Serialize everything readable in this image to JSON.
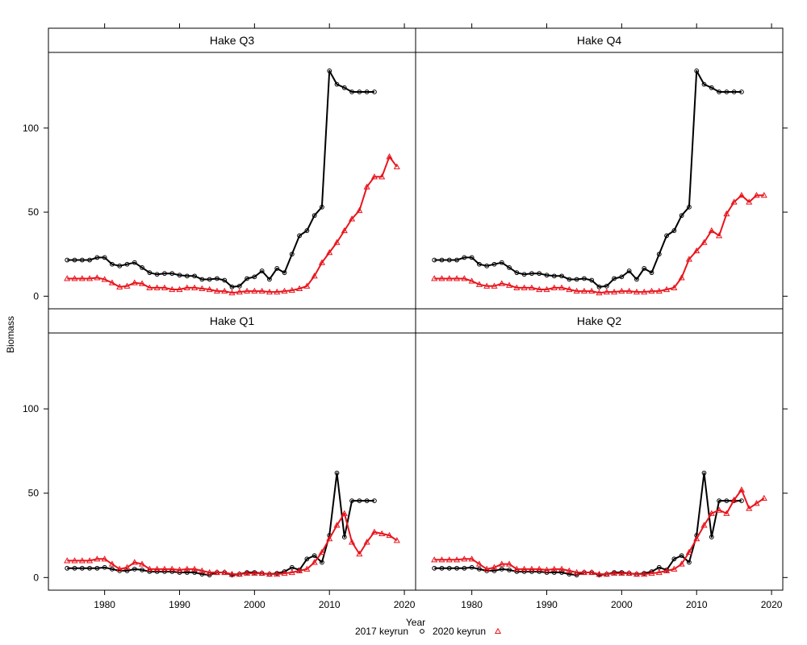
{
  "chart_data": {
    "type": "line",
    "xlabel": "Year",
    "ylabel": "Biomass",
    "xlim": [
      1972.5,
      2021.5
    ],
    "ylim": [
      -7.5,
      145
    ],
    "x_ticks": [
      1980,
      1990,
      2000,
      2010,
      2020
    ],
    "y_ticks": [
      0,
      50,
      100
    ],
    "legend_position": "bottom",
    "legend": [
      {
        "label": "2017 keyrun",
        "color": "#000000",
        "marker": "circle"
      },
      {
        "label": "2020 keyrun",
        "color": "#e8141c",
        "marker": "triangle"
      }
    ],
    "panels": [
      {
        "title": "Hake Q3",
        "series": [
          {
            "name": "2017 keyrun",
            "color": "#000000",
            "x": [
              1975,
              1976,
              1977,
              1978,
              1979,
              1980,
              1981,
              1982,
              1983,
              1984,
              1985,
              1986,
              1987,
              1988,
              1989,
              1990,
              1991,
              1992,
              1993,
              1994,
              1995,
              1996,
              1997,
              1998,
              1999,
              2000,
              2001,
              2002,
              2003,
              2004,
              2005,
              2006,
              2007,
              2008,
              2009,
              2010,
              2011,
              2012,
              2013,
              2014,
              2015,
              2016
            ],
            "y": [
              21.5,
              21.5,
              21.5,
              21.5,
              23,
              23,
              19,
              18,
              19,
              20,
              17,
              14,
              13,
              13.5,
              13.5,
              12.5,
              12,
              12,
              10,
              10,
              10.5,
              9.5,
              5.5,
              6,
              10.5,
              11.5,
              15,
              10,
              16.5,
              14,
              25,
              36,
              39,
              48,
              53,
              134,
              126,
              124,
              121.5,
              121.5,
              121.5,
              121.5
            ]
          },
          {
            "name": "2020 keyrun",
            "color": "#e8141c",
            "x": [
              1975,
              1976,
              1977,
              1978,
              1979,
              1980,
              1981,
              1982,
              1983,
              1984,
              1985,
              1986,
              1987,
              1988,
              1989,
              1990,
              1991,
              1992,
              1993,
              1994,
              1995,
              1996,
              1997,
              1998,
              1999,
              2000,
              2001,
              2002,
              2003,
              2004,
              2005,
              2006,
              2007,
              2008,
              2009,
              2010,
              2011,
              2012,
              2013,
              2014,
              2015,
              2016,
              2017,
              2018,
              2019
            ],
            "y": [
              10.5,
              10.5,
              10.5,
              10.5,
              11,
              10,
              8,
              5.5,
              6,
              8,
              7.5,
              5,
              5,
              5,
              4,
              4,
              5,
              5,
              4.5,
              4,
              3,
              3,
              2,
              2.5,
              3,
              3,
              3,
              2.5,
              2.5,
              3,
              3.5,
              4.5,
              6,
              12,
              20,
              26,
              32,
              39,
              46,
              51,
              65,
              71,
              71,
              83,
              77
            ]
          }
        ]
      },
      {
        "title": "Hake Q4",
        "series": [
          {
            "name": "2017 keyrun",
            "color": "#000000",
            "x": [
              1975,
              1976,
              1977,
              1978,
              1979,
              1980,
              1981,
              1982,
              1983,
              1984,
              1985,
              1986,
              1987,
              1988,
              1989,
              1990,
              1991,
              1992,
              1993,
              1994,
              1995,
              1996,
              1997,
              1998,
              1999,
              2000,
              2001,
              2002,
              2003,
              2004,
              2005,
              2006,
              2007,
              2008,
              2009,
              2010,
              2011,
              2012,
              2013,
              2014,
              2015,
              2016
            ],
            "y": [
              21.5,
              21.5,
              21.5,
              21.5,
              23,
              23,
              19,
              18,
              19,
              20,
              17,
              14,
              13,
              13.5,
              13.5,
              12.5,
              12,
              12,
              10,
              10,
              10.5,
              9.5,
              5.5,
              6,
              10.5,
              11.5,
              15,
              10,
              16.5,
              14,
              25,
              36,
              39,
              48,
              53,
              134,
              126,
              124,
              121.5,
              121.5,
              121.5,
              121.5
            ]
          },
          {
            "name": "2020 keyrun",
            "color": "#e8141c",
            "x": [
              1975,
              1976,
              1977,
              1978,
              1979,
              1980,
              1981,
              1982,
              1983,
              1984,
              1985,
              1986,
              1987,
              1988,
              1989,
              1990,
              1991,
              1992,
              1993,
              1994,
              1995,
              1996,
              1997,
              1998,
              1999,
              2000,
              2001,
              2002,
              2003,
              2004,
              2005,
              2006,
              2007,
              2008,
              2009,
              2010,
              2011,
              2012,
              2013,
              2014,
              2015,
              2016,
              2017,
              2018,
              2019
            ],
            "y": [
              10.5,
              10.5,
              10.5,
              10.5,
              10.5,
              9,
              7,
              6,
              6,
              7.5,
              6.5,
              5,
              5,
              5,
              4,
              4,
              5,
              5,
              4,
              3,
              3,
              3,
              2,
              2.5,
              2.5,
              3,
              3,
              2.5,
              2.5,
              3,
              3,
              4,
              5,
              11,
              22,
              27,
              32,
              39,
              36,
              49,
              56,
              60,
              56,
              60,
              60
            ]
          }
        ]
      },
      {
        "title": "Hake Q1",
        "series": [
          {
            "name": "2017 keyrun",
            "color": "#000000",
            "x": [
              1975,
              1976,
              1977,
              1978,
              1979,
              1980,
              1981,
              1982,
              1983,
              1984,
              1985,
              1986,
              1987,
              1988,
              1989,
              1990,
              1991,
              1992,
              1993,
              1994,
              1995,
              1996,
              1997,
              1998,
              1999,
              2000,
              2001,
              2002,
              2003,
              2004,
              2005,
              2006,
              2007,
              2008,
              2009,
              2010,
              2011,
              2012,
              2013,
              2014,
              2015,
              2016
            ],
            "y": [
              5.5,
              5.5,
              5.5,
              5.5,
              5.5,
              6,
              5,
              4,
              4,
              5,
              4.5,
              3.5,
              3.5,
              3.5,
              3.5,
              3,
              3,
              3,
              2,
              1.5,
              3,
              3,
              1.5,
              2,
              3,
              3,
              2.5,
              2,
              2.5,
              3.5,
              6,
              4.5,
              11,
              13,
              9,
              25,
              62,
              24,
              45.5,
              45.5,
              45.5,
              45.5
            ]
          },
          {
            "name": "2020 keyrun",
            "color": "#e8141c",
            "x": [
              1975,
              1976,
              1977,
              1978,
              1979,
              1980,
              1981,
              1982,
              1983,
              1984,
              1985,
              1986,
              1987,
              1988,
              1989,
              1990,
              1991,
              1992,
              1993,
              1994,
              1995,
              1996,
              1997,
              1998,
              1999,
              2000,
              2001,
              2002,
              2003,
              2004,
              2005,
              2006,
              2007,
              2008,
              2009,
              2010,
              2011,
              2012,
              2013,
              2014,
              2015,
              2016,
              2017,
              2018,
              2019
            ],
            "y": [
              10,
              10,
              10,
              10,
              11,
              11,
              8,
              5,
              6,
              9,
              8,
              5,
              5,
              5,
              5,
              4.5,
              5,
              5,
              4,
              3,
              3,
              3,
              2,
              2,
              2.5,
              2.5,
              2.5,
              2,
              2,
              2.5,
              3,
              4,
              5,
              9,
              15,
              23,
              31,
              38,
              21,
              14,
              21,
              27,
              26,
              25,
              22
            ]
          }
        ]
      },
      {
        "title": "Hake Q2",
        "series": [
          {
            "name": "2017 keyrun",
            "color": "#000000",
            "x": [
              1975,
              1976,
              1977,
              1978,
              1979,
              1980,
              1981,
              1982,
              1983,
              1984,
              1985,
              1986,
              1987,
              1988,
              1989,
              1990,
              1991,
              1992,
              1993,
              1994,
              1995,
              1996,
              1997,
              1998,
              1999,
              2000,
              2001,
              2002,
              2003,
              2004,
              2005,
              2006,
              2007,
              2008,
              2009,
              2010,
              2011,
              2012,
              2013,
              2014,
              2015,
              2016
            ],
            "y": [
              5.5,
              5.5,
              5.5,
              5.5,
              5.5,
              6,
              5,
              4,
              4,
              5,
              4.5,
              3.5,
              3.5,
              3.5,
              3.5,
              3,
              3,
              3,
              2,
              1.5,
              3,
              3,
              1.5,
              2,
              3,
              3,
              2.5,
              2,
              2.5,
              3.5,
              6,
              4.5,
              11,
              13,
              9,
              25,
              62,
              24,
              45.5,
              45.5,
              45.5,
              45.5
            ]
          },
          {
            "name": "2020 keyrun",
            "color": "#e8141c",
            "x": [
              1975,
              1976,
              1977,
              1978,
              1979,
              1980,
              1981,
              1982,
              1983,
              1984,
              1985,
              1986,
              1987,
              1988,
              1989,
              1990,
              1991,
              1992,
              1993,
              1994,
              1995,
              1996,
              1997,
              1998,
              1999,
              2000,
              2001,
              2002,
              2003,
              2004,
              2005,
              2006,
              2007,
              2008,
              2009,
              2010,
              2011,
              2012,
              2013,
              2014,
              2015,
              2016,
              2017,
              2018,
              2019
            ],
            "y": [
              10.5,
              10.5,
              10.5,
              10.5,
              11,
              11,
              8,
              5,
              6,
              8,
              8,
              5,
              5,
              5,
              5,
              4.5,
              5,
              5,
              4,
              3,
              3,
              3,
              2,
              2,
              2.5,
              2.5,
              2.5,
              2,
              2,
              2.5,
              3,
              4,
              5,
              8,
              15,
              23,
              31,
              38,
              40,
              38,
              46,
              52,
              41,
              44,
              47
            ]
          }
        ]
      }
    ]
  }
}
